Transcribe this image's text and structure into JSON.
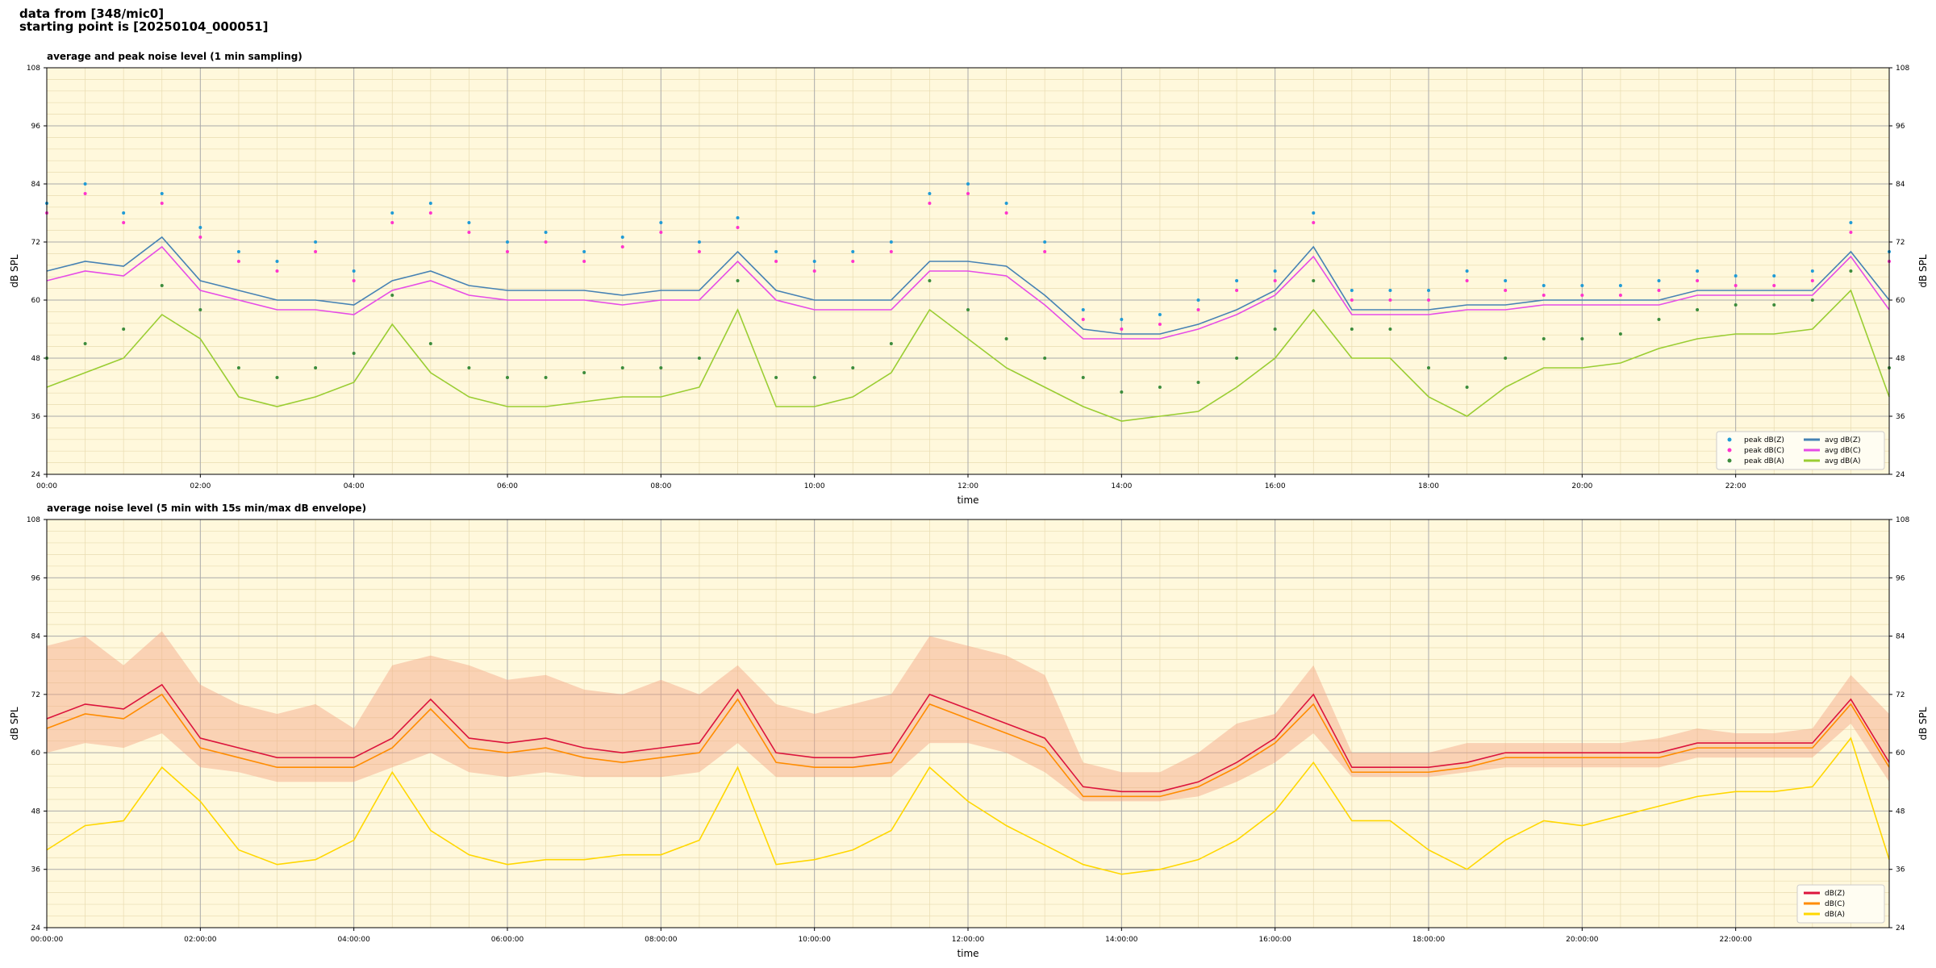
{
  "header": {
    "line1": "data from [348/mic0]",
    "line2": "starting point is [20250104_000051]"
  },
  "chart_data": [
    {
      "type": "line",
      "title": "average and peak noise level (1 min sampling)",
      "xlabel": "time",
      "ylabel": "dB SPL",
      "xlim": [
        0,
        24
      ],
      "ylim": [
        24,
        108
      ],
      "xticks": [
        {
          "value": 0,
          "label": "00:00"
        },
        {
          "value": 2,
          "label": "02:00"
        },
        {
          "value": 4,
          "label": "04:00"
        },
        {
          "value": 6,
          "label": "06:00"
        },
        {
          "value": 8,
          "label": "08:00"
        },
        {
          "value": 10,
          "label": "10:00"
        },
        {
          "value": 12,
          "label": "12:00"
        },
        {
          "value": 14,
          "label": "14:00"
        },
        {
          "value": 16,
          "label": "16:00"
        },
        {
          "value": 18,
          "label": "18:00"
        },
        {
          "value": 20,
          "label": "20:00"
        },
        {
          "value": 22,
          "label": "22:00"
        }
      ],
      "yticks": [
        24,
        36,
        48,
        60,
        72,
        84,
        96,
        108
      ],
      "grid": true,
      "minor_grid": true,
      "background": "#fff8dc",
      "legend": "lower right",
      "x": [
        0,
        0.5,
        1,
        1.5,
        2,
        2.5,
        3,
        3.5,
        4,
        4.5,
        5,
        5.5,
        6,
        6.5,
        7,
        7.5,
        8,
        8.5,
        9,
        9.5,
        10,
        10.5,
        11,
        11.5,
        12,
        12.5,
        13,
        13.5,
        14,
        14.5,
        15,
        15.5,
        16,
        16.5,
        17,
        17.5,
        18,
        18.5,
        19,
        19.5,
        20,
        20.5,
        21,
        21.5,
        22,
        22.5,
        23,
        23.5,
        24
      ],
      "series": [
        {
          "name": "peak dB(Z)",
          "mode": "markers",
          "color": "#1f9bd6",
          "values": [
            80,
            84,
            78,
            82,
            75,
            70,
            68,
            72,
            66,
            78,
            80,
            76,
            72,
            74,
            70,
            73,
            76,
            72,
            77,
            70,
            68,
            70,
            72,
            82,
            84,
            80,
            72,
            58,
            56,
            57,
            60,
            64,
            66,
            78,
            62,
            62,
            62,
            66,
            64,
            63,
            63,
            63,
            64,
            66,
            65,
            65,
            66,
            76,
            70
          ]
        },
        {
          "name": "peak dB(C)",
          "mode": "markers",
          "color": "#ff33cc",
          "values": [
            78,
            82,
            76,
            80,
            73,
            68,
            66,
            70,
            64,
            76,
            78,
            74,
            70,
            72,
            68,
            71,
            74,
            70,
            75,
            68,
            66,
            68,
            70,
            80,
            82,
            78,
            70,
            56,
            54,
            55,
            58,
            62,
            64,
            76,
            60,
            60,
            60,
            64,
            62,
            61,
            61,
            61,
            62,
            64,
            63,
            63,
            64,
            74,
            68
          ]
        },
        {
          "name": "peak dB(A)",
          "mode": "markers",
          "color": "#3c8c3c",
          "values": [
            48,
            51,
            54,
            63,
            58,
            46,
            44,
            46,
            49,
            61,
            51,
            46,
            44,
            44,
            45,
            46,
            46,
            48,
            64,
            44,
            44,
            46,
            51,
            64,
            58,
            52,
            48,
            44,
            41,
            42,
            43,
            48,
            54,
            64,
            54,
            54,
            46,
            42,
            48,
            52,
            52,
            53,
            56,
            58,
            59,
            59,
            60,
            66,
            46
          ]
        },
        {
          "name": "avg dB(Z)",
          "mode": "lines",
          "color": "#4682b4",
          "values": [
            66,
            68,
            67,
            73,
            64,
            62,
            60,
            60,
            59,
            64,
            66,
            63,
            62,
            62,
            62,
            61,
            62,
            62,
            70,
            62,
            60,
            60,
            60,
            68,
            68,
            67,
            61,
            54,
            53,
            53,
            55,
            58,
            62,
            71,
            58,
            58,
            58,
            59,
            59,
            60,
            60,
            60,
            60,
            62,
            62,
            62,
            62,
            70,
            60
          ]
        },
        {
          "name": "avg dB(C)",
          "mode": "lines",
          "color": "#e64ce6",
          "values": [
            64,
            66,
            65,
            71,
            62,
            60,
            58,
            58,
            57,
            62,
            64,
            61,
            60,
            60,
            60,
            59,
            60,
            60,
            68,
            60,
            58,
            58,
            58,
            66,
            66,
            65,
            59,
            52,
            52,
            52,
            54,
            57,
            61,
            69,
            57,
            57,
            57,
            58,
            58,
            59,
            59,
            59,
            59,
            61,
            61,
            61,
            61,
            69,
            58
          ]
        },
        {
          "name": "avg dB(A)",
          "mode": "lines",
          "color": "#9acd32",
          "values": [
            42,
            45,
            48,
            57,
            52,
            40,
            38,
            40,
            43,
            55,
            45,
            40,
            38,
            38,
            39,
            40,
            40,
            42,
            58,
            38,
            38,
            40,
            45,
            58,
            52,
            46,
            42,
            38,
            35,
            36,
            37,
            42,
            48,
            58,
            48,
            48,
            40,
            36,
            42,
            46,
            46,
            47,
            50,
            52,
            53,
            53,
            54,
            62,
            40
          ]
        }
      ]
    },
    {
      "type": "line",
      "title": "average noise level (5 min with 15s min/max dB envelope)",
      "xlabel": "time",
      "ylabel": "dB SPL",
      "xlim": [
        0,
        24
      ],
      "ylim": [
        24,
        108
      ],
      "xticks": [
        {
          "value": 0,
          "label": "00:00:00"
        },
        {
          "value": 2,
          "label": "02:00:00"
        },
        {
          "value": 4,
          "label": "04:00:00"
        },
        {
          "value": 6,
          "label": "06:00:00"
        },
        {
          "value": 8,
          "label": "08:00:00"
        },
        {
          "value": 10,
          "label": "10:00:00"
        },
        {
          "value": 12,
          "label": "12:00:00"
        },
        {
          "value": 14,
          "label": "14:00:00"
        },
        {
          "value": 16,
          "label": "16:00:00"
        },
        {
          "value": 18,
          "label": "18:00:00"
        },
        {
          "value": 20,
          "label": "20:00:00"
        },
        {
          "value": 22,
          "label": "22:00:00"
        }
      ],
      "yticks": [
        24,
        36,
        48,
        60,
        72,
        84,
        96,
        108
      ],
      "grid": true,
      "minor_grid": true,
      "background": "#fff8dc",
      "legend": "lower right",
      "x": [
        0,
        0.5,
        1,
        1.5,
        2,
        2.5,
        3,
        3.5,
        4,
        4.5,
        5,
        5.5,
        6,
        6.5,
        7,
        7.5,
        8,
        8.5,
        9,
        9.5,
        10,
        10.5,
        11,
        11.5,
        12,
        12.5,
        13,
        13.5,
        14,
        14.5,
        15,
        15.5,
        16,
        16.5,
        17,
        17.5,
        18,
        18.5,
        19,
        19.5,
        20,
        20.5,
        21,
        21.5,
        22,
        22.5,
        23,
        23.5,
        24
      ],
      "envelope": {
        "color": "#f4a582",
        "lower": [
          60,
          62,
          61,
          64,
          57,
          56,
          54,
          54,
          54,
          57,
          60,
          56,
          55,
          56,
          55,
          55,
          55,
          56,
          62,
          55,
          55,
          55,
          55,
          62,
          62,
          60,
          56,
          50,
          50,
          50,
          51,
          54,
          58,
          64,
          55,
          55,
          55,
          56,
          57,
          57,
          57,
          57,
          57,
          59,
          59,
          59,
          59,
          66,
          54
        ],
        "upper": [
          82,
          84,
          78,
          85,
          74,
          70,
          68,
          70,
          65,
          78,
          80,
          78,
          75,
          76,
          73,
          72,
          75,
          72,
          78,
          70,
          68,
          70,
          72,
          84,
          82,
          80,
          76,
          58,
          56,
          56,
          60,
          66,
          68,
          78,
          60,
          60,
          60,
          62,
          62,
          62,
          62,
          62,
          63,
          65,
          64,
          64,
          65,
          76,
          68
        ]
      },
      "series": [
        {
          "name": "dB(Z)",
          "mode": "lines",
          "color": "#dc143c",
          "values": [
            67,
            70,
            69,
            74,
            63,
            61,
            59,
            59,
            59,
            63,
            71,
            63,
            62,
            63,
            61,
            60,
            61,
            62,
            73,
            60,
            59,
            59,
            60,
            72,
            69,
            66,
            63,
            53,
            52,
            52,
            54,
            58,
            63,
            72,
            57,
            57,
            57,
            58,
            60,
            60,
            60,
            60,
            60,
            62,
            62,
            62,
            62,
            71,
            58
          ]
        },
        {
          "name": "dB(C)",
          "mode": "lines",
          "color": "#ff8c00",
          "values": [
            65,
            68,
            67,
            72,
            61,
            59,
            57,
            57,
            57,
            61,
            69,
            61,
            60,
            61,
            59,
            58,
            59,
            60,
            71,
            58,
            57,
            57,
            58,
            70,
            67,
            64,
            61,
            51,
            51,
            51,
            53,
            57,
            62,
            70,
            56,
            56,
            56,
            57,
            59,
            59,
            59,
            59,
            59,
            61,
            61,
            61,
            61,
            70,
            57
          ]
        },
        {
          "name": "dB(A)",
          "mode": "lines",
          "color": "#ffd700",
          "values": [
            40,
            45,
            46,
            57,
            50,
            40,
            37,
            38,
            42,
            56,
            44,
            39,
            37,
            38,
            38,
            39,
            39,
            42,
            57,
            37,
            38,
            40,
            44,
            57,
            50,
            45,
            41,
            37,
            35,
            36,
            38,
            42,
            48,
            58,
            46,
            46,
            40,
            36,
            42,
            46,
            45,
            47,
            49,
            51,
            52,
            52,
            53,
            63,
            38
          ]
        }
      ]
    }
  ]
}
